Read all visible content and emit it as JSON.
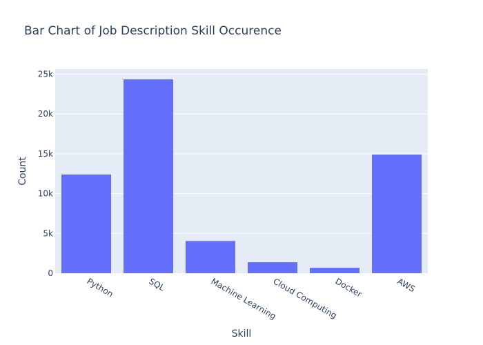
{
  "chart_data": {
    "type": "bar",
    "title": "Bar Chart of Job Description Skill Occurence",
    "xlabel": "Skill",
    "ylabel": "Count",
    "categories": [
      "Python",
      "SQL",
      "Machine Learning",
      "Cloud Computing",
      "Docker",
      "AWS"
    ],
    "values": [
      12400,
      24350,
      4050,
      1380,
      680,
      14900
    ],
    "ylim": [
      0,
      25650
    ],
    "yticks": [
      0,
      5000,
      10000,
      15000,
      20000,
      25000
    ],
    "ytick_labels": [
      "0",
      "5k",
      "10k",
      "15k",
      "20k",
      "25k"
    ],
    "grid": true,
    "legend": "none",
    "colors": {
      "bar": "#636efa",
      "plot_bg": "#e5ecf6",
      "grid": "#ffffff",
      "text": "#2a3f5f"
    }
  }
}
